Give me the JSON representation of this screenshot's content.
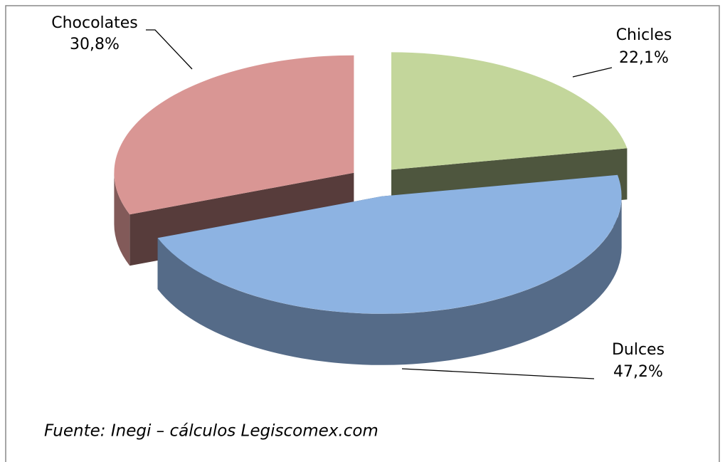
{
  "chart_data": {
    "type": "pie",
    "categories": [
      "Chicles",
      "Dulces",
      "Chocolates"
    ],
    "values": [
      22.1,
      47.2,
      30.8
    ],
    "value_labels": [
      "22,1%",
      "47,2%",
      "30,8%"
    ],
    "colors": [
      "#c3d69b",
      "#8db3e2",
      "#d99694"
    ],
    "source": "Fuente: Inegi – cálculos Legiscomex.com"
  }
}
